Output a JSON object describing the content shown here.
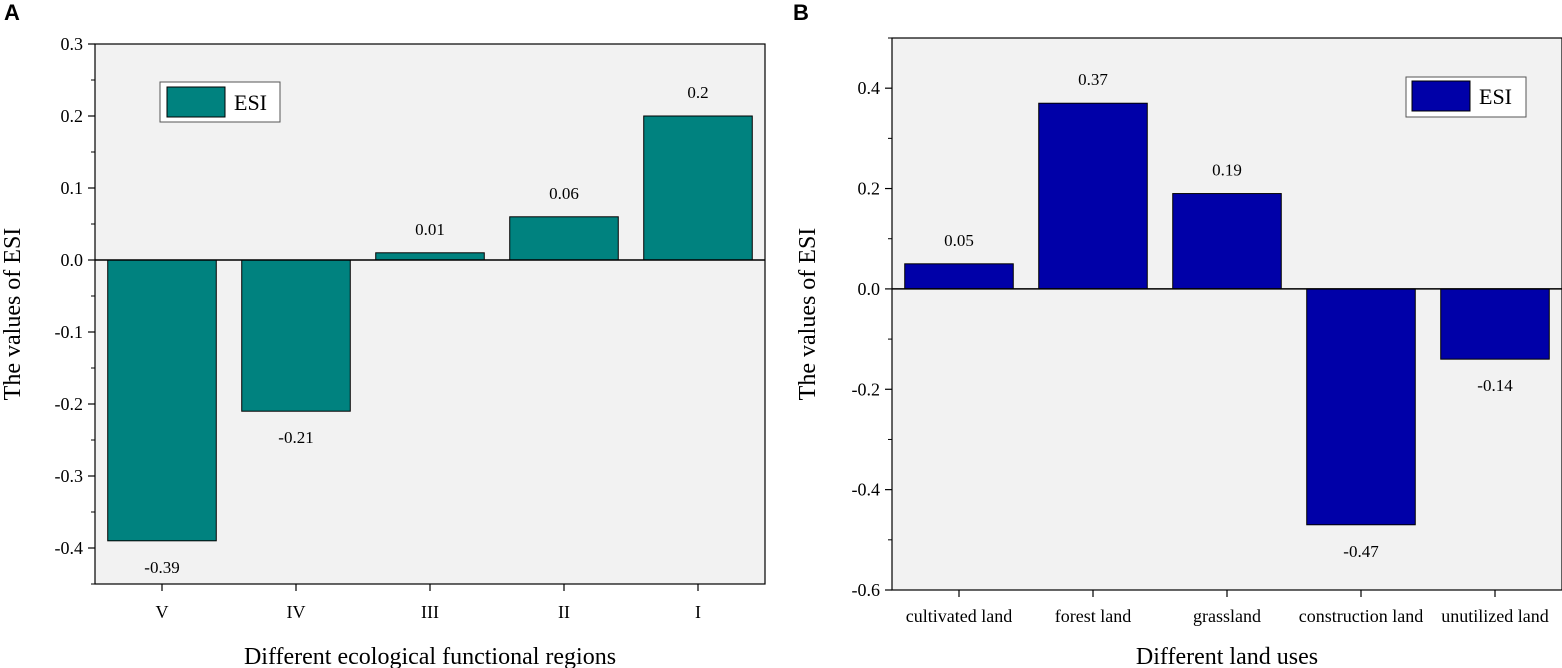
{
  "chart_data": [
    {
      "panel": "A",
      "type": "bar",
      "xlabel": "Different ecological functional regions",
      "ylabel": "The values of ESI",
      "categories": [
        "V",
        "IV",
        "III",
        "II",
        "I"
      ],
      "series": [
        {
          "name": "ESI",
          "values": [
            -0.39,
            -0.21,
            0.01,
            0.06,
            0.2
          ]
        }
      ],
      "data_labels": [
        "-0.39",
        "-0.21",
        "0.01",
        "0.06",
        "0.2"
      ],
      "ylim": [
        -0.45,
        0.3
      ],
      "yticks": [
        -0.4,
        -0.3,
        -0.2,
        -0.1,
        0.0,
        0.1,
        0.2,
        0.3
      ],
      "ytick_labels": [
        "-0.4",
        "-0.3",
        "-0.2",
        "-0.1",
        "0.0",
        "0.1",
        "0.2",
        "0.3"
      ],
      "bar_color": "#00827f",
      "legend": "top-left"
    },
    {
      "panel": "B",
      "type": "bar",
      "xlabel": "Different land uses",
      "ylabel": "The values of ESI",
      "categories": [
        "cultivated land",
        "forest land",
        "grassland",
        "construction land",
        "unutilized land"
      ],
      "series": [
        {
          "name": "ESI",
          "values": [
            0.05,
            0.37,
            0.19,
            -0.47,
            -0.14
          ]
        }
      ],
      "data_labels": [
        "0.05",
        "0.37",
        "0.19",
        "-0.47",
        "-0.14"
      ],
      "ylim": [
        -0.6,
        0.5
      ],
      "yticks": [
        -0.6,
        -0.4,
        -0.2,
        0.0,
        0.2,
        0.4
      ],
      "ytick_labels": [
        "-0.6",
        "-0.4",
        "-0.2",
        "0.0",
        "0.2",
        "0.4"
      ],
      "bar_color": "#0000a8",
      "legend": "top-right"
    }
  ]
}
